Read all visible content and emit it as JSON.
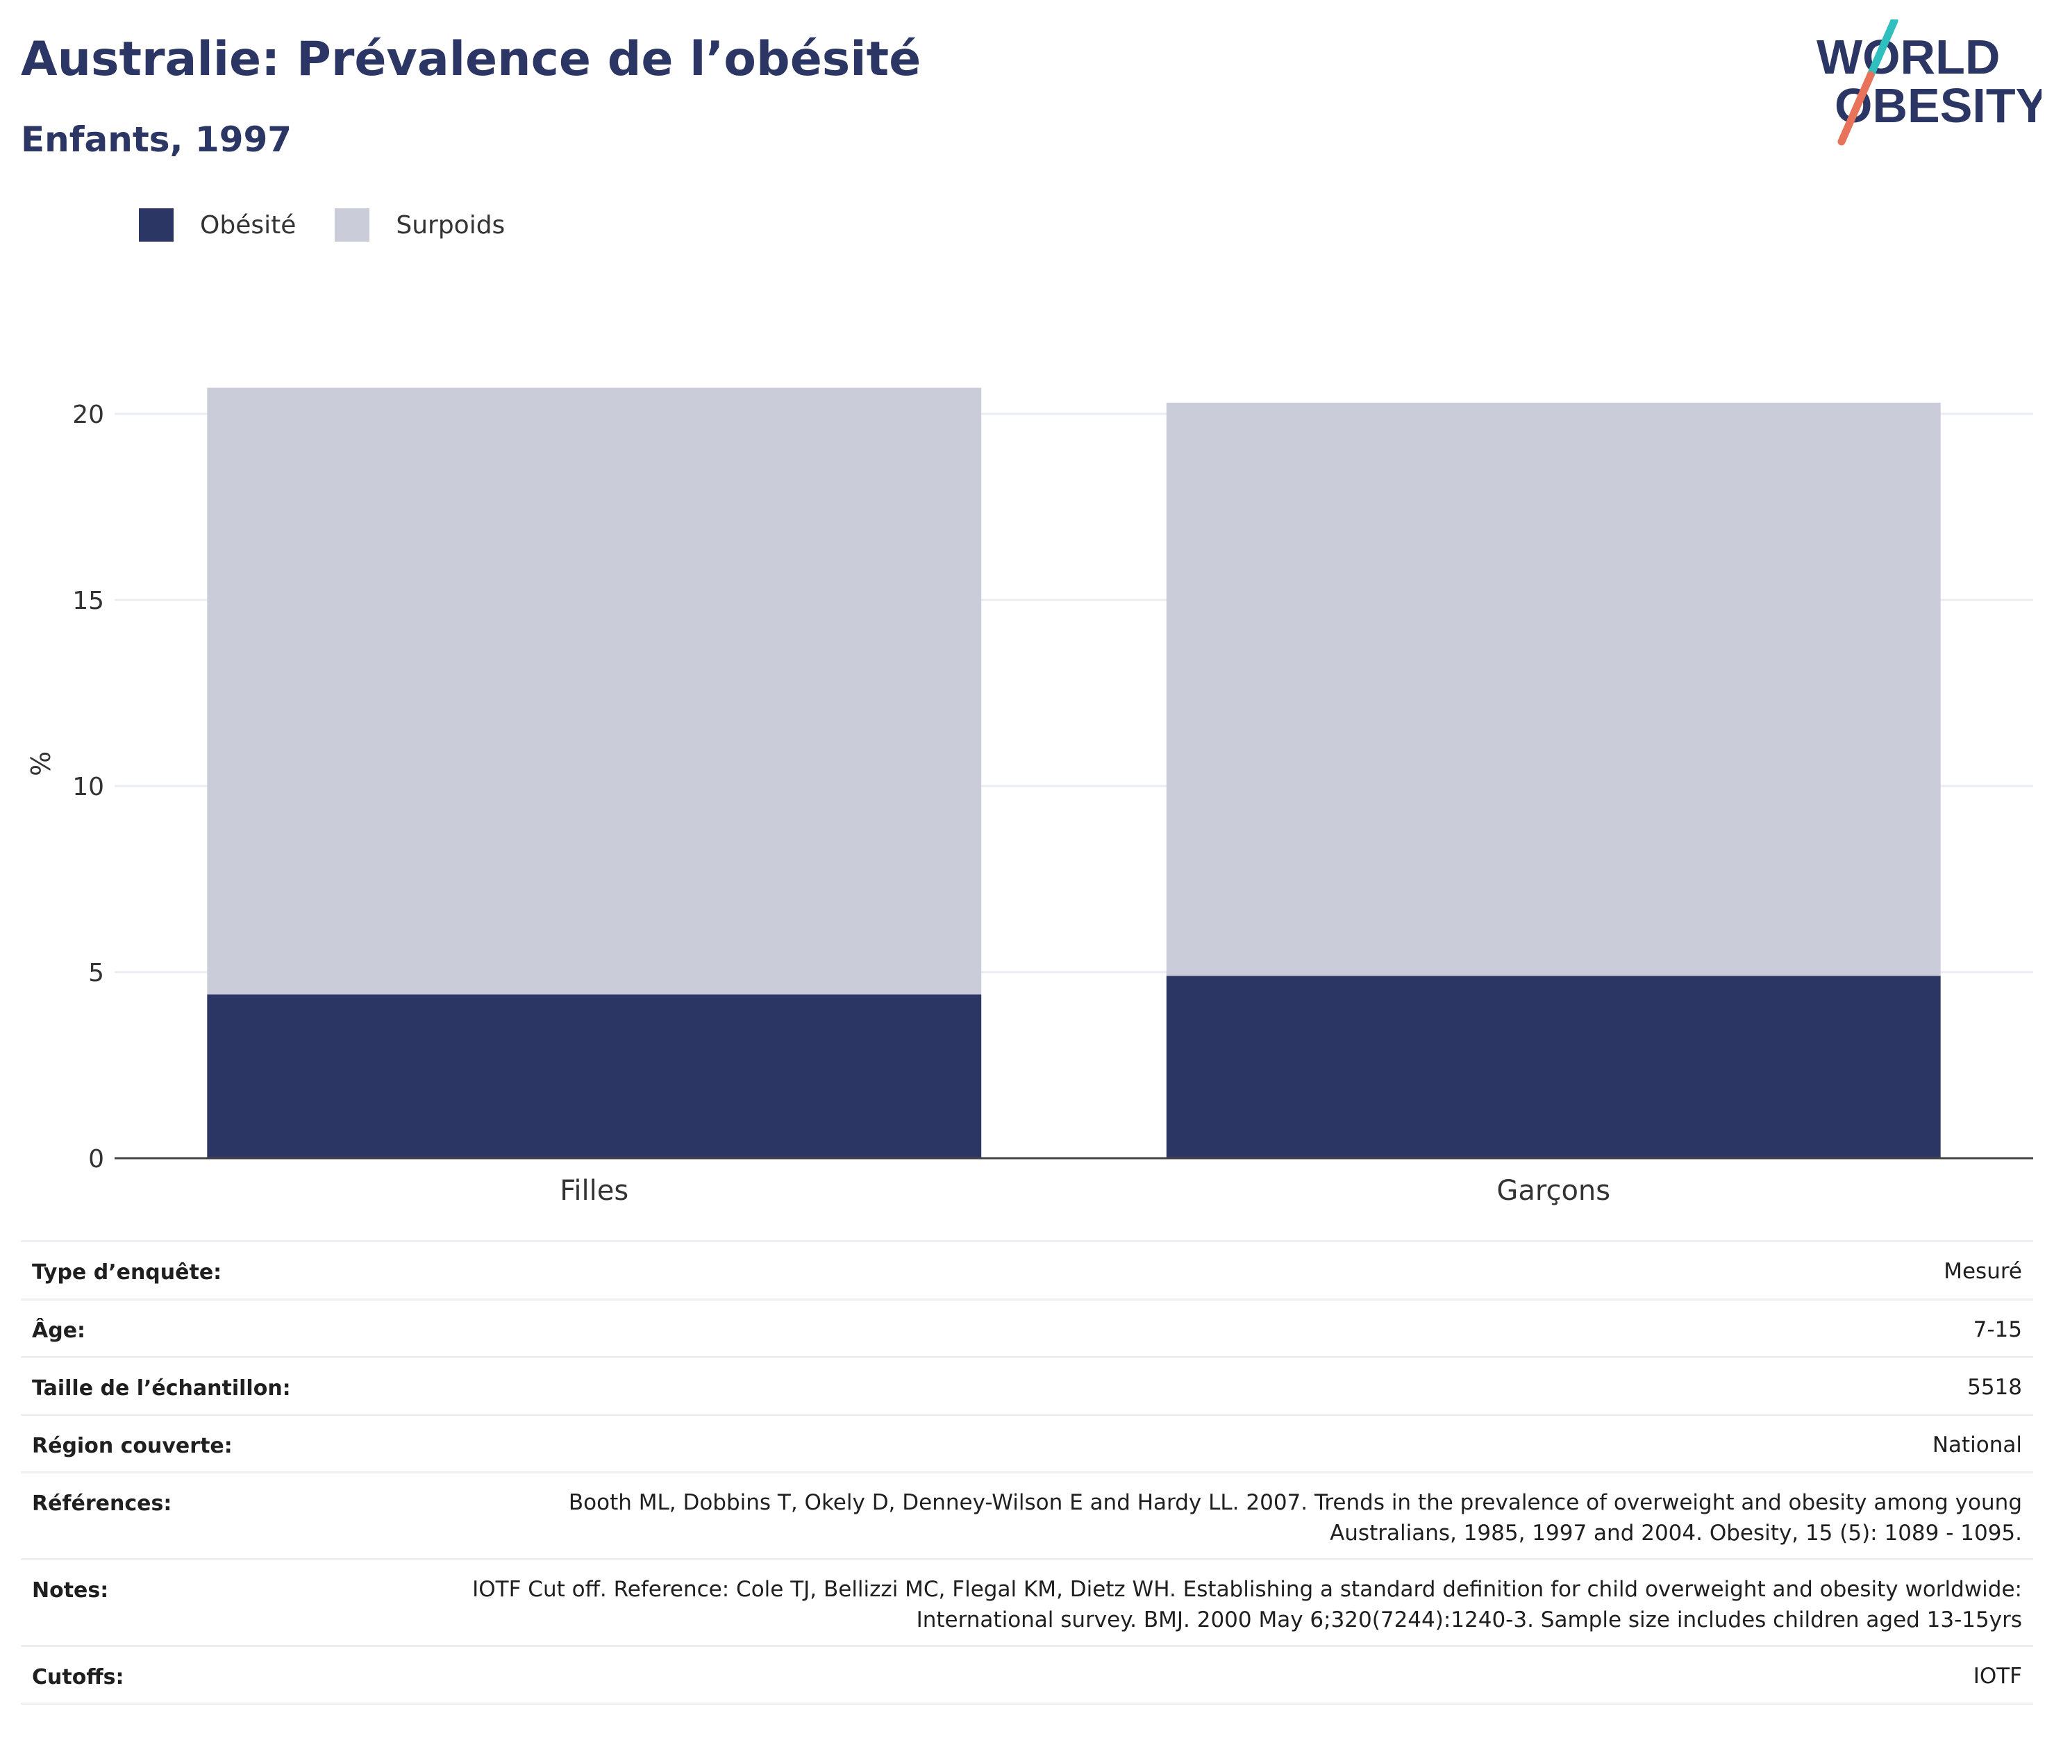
{
  "header": {
    "title": "Australie: Prévalence de l’obésité",
    "subtitle": "Enfants, 1997"
  },
  "logo": {
    "line1": "WORLD",
    "line2": "OBESITY",
    "colors": {
      "text": "#2b3664",
      "slash_top": "#2fbfbf",
      "slash_bottom": "#e8735a"
    }
  },
  "legend": [
    {
      "label": "Obésité",
      "color": "#2b3664"
    },
    {
      "label": "Surpoids",
      "color": "#cacdd9"
    }
  ],
  "chart_data": {
    "type": "bar",
    "stacked": true,
    "categories": [
      "Filles",
      "Garçons"
    ],
    "series": [
      {
        "name": "Obésité",
        "color": "#2b3664",
        "values": [
          4.4,
          4.9
        ]
      },
      {
        "name": "Surpoids",
        "color": "#cacdd9",
        "values": [
          16.3,
          15.4
        ]
      }
    ],
    "ylabel": "%",
    "xlabel": "",
    "ylim": [
      0,
      21.5
    ],
    "yticks": [
      0,
      5,
      10,
      15,
      20
    ],
    "grid": true,
    "legend_position": "top-left"
  },
  "metadata": [
    {
      "key": "Type d’enquête:",
      "value": "Mesuré"
    },
    {
      "key": "Âge:",
      "value": "7-15"
    },
    {
      "key": "Taille de l’échantillon:",
      "value": "5518"
    },
    {
      "key": "Région couverte:",
      "value": "National"
    },
    {
      "key": "Références:",
      "value": "Booth ML, Dobbins T, Okely D, Denney-Wilson E and Hardy LL. 2007. Trends in the prevalence of overweight and obesity among young Australians, 1985, 1997 and 2004. Obesity, 15 (5): 1089 - 1095."
    },
    {
      "key": "Notes:",
      "value": "IOTF Cut off. Reference: Cole TJ, Bellizzi MC, Flegal KM, Dietz WH. Establishing a standard definition for child overweight and obesity worldwide: International survey. BMJ. 2000 May 6;320(7244):1240-3. Sample size includes children aged 13-15yrs"
    },
    {
      "key": "Cutoffs:",
      "value": "IOTF"
    }
  ]
}
